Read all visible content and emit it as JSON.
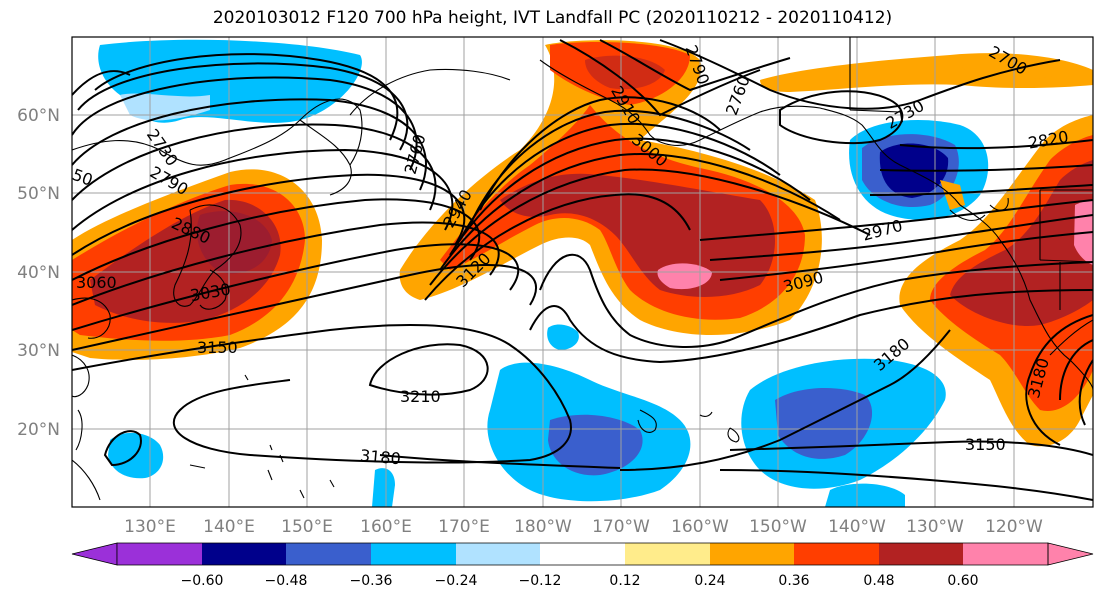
{
  "title": "2020103012 F120 700 hPa height, IVT Landfall PC (2020110212 - 2020110412)",
  "colors": {
    "purple": "#9b30d9",
    "navy": "#00008b",
    "blue": "#3a5fcd",
    "deepsky": "#00bfff",
    "lightblue": "#b0e2ff",
    "white": "#ffffff",
    "yellow": "#ffec8b",
    "orange": "#ffa500",
    "orangered": "#ff3e00",
    "firebrick": "#b22222",
    "pink": "#ff82ab",
    "contour": "#000000",
    "grid": "#a0a0a0",
    "coast": "#000000"
  },
  "map": {
    "lat_ticks": [
      "60°N",
      "50°N",
      "40°N",
      "30°N",
      "20°N"
    ],
    "lon_ticks": [
      "130°E",
      "140°E",
      "150°E",
      "160°E",
      "170°E",
      "180°W",
      "170°W",
      "160°W",
      "150°W",
      "140°W",
      "130°W",
      "120°W"
    ]
  },
  "colorbar": {
    "labels": [
      "−0.60",
      "−0.48",
      "−0.36",
      "−0.24",
      "−0.12",
      "0.12",
      "0.24",
      "0.36",
      "0.48",
      "0.60"
    ],
    "colors": [
      "#9b30d9",
      "#00008b",
      "#3a5fcd",
      "#00bfff",
      "#b0e2ff",
      "#ffffff",
      "#ffec8b",
      "#ffa500",
      "#ff3e00",
      "#b22222",
      "#ff82ab"
    ]
  },
  "contour_labels": [
    "2730",
    "2790",
    "2880",
    "3060",
    "3030",
    "3150",
    "2940",
    "2760",
    "3120",
    "2790",
    "2760",
    "2910",
    "3000",
    "2730",
    "2700",
    "2820",
    "2970",
    "3090",
    "3180",
    "3210",
    "3180",
    "3180",
    "3150",
    "2700",
    "50",
    "3180"
  ]
}
